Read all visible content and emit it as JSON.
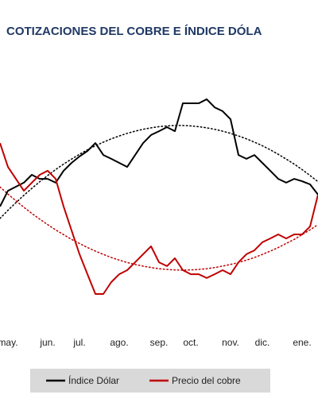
{
  "chart_data": {
    "type": "line",
    "title": "COTIZACIONES DEL COBRE E ÍNDICE DÓLA",
    "categories": [
      null,
      "may.",
      null,
      null,
      null,
      null,
      "jun.",
      null,
      null,
      null,
      "jul.",
      null,
      null,
      null,
      null,
      "ago.",
      null,
      null,
      null,
      null,
      "sep.",
      null,
      null,
      null,
      "oct.",
      null,
      null,
      null,
      null,
      "nov.",
      null,
      null,
      null,
      "dic.",
      null,
      null,
      null,
      null,
      "ene.",
      null,
      null
    ],
    "ylim": [
      0,
      100
    ],
    "series": [
      {
        "name": "Índice Dólar",
        "color": "#000000",
        "values": [
          46.7,
          53.3,
          55,
          56.7,
          60,
          58.3,
          58.3,
          56.7,
          61.7,
          65,
          67.7,
          70,
          73.3,
          68.3,
          66.7,
          65,
          63.3,
          68.3,
          73.3,
          76.7,
          78.3,
          80,
          78.3,
          90,
          90,
          90,
          91.7,
          88.3,
          86.7,
          83.3,
          68.3,
          66.7,
          68.3,
          65,
          61.7,
          58.3,
          56.7,
          58.3,
          57.3,
          56,
          51.7
        ]
      },
      {
        "name": "Precio del cobre",
        "color": "#c00000",
        "values": [
          73.3,
          63.3,
          58.3,
          53.3,
          56.7,
          60,
          61.7,
          58.3,
          46.7,
          36.7,
          26.7,
          18.3,
          10,
          10,
          15,
          18.3,
          20,
          23.3,
          26.7,
          30,
          23.3,
          21.7,
          25,
          20,
          18.3,
          18.3,
          16.7,
          18.3,
          20,
          18.3,
          23.3,
          26.7,
          28.3,
          31.7,
          33.3,
          35,
          33.3,
          35,
          35,
          38.3,
          51.7
        ]
      }
    ],
    "trend_lines": [
      {
        "color": "#000000",
        "values": [
          41.7,
          45.1,
          48.3,
          51.4,
          54.3,
          57.1,
          59.7,
          62.2,
          64.5,
          66.6,
          68.6,
          70.5,
          72.2,
          73.7,
          75.1,
          76.3,
          77.4,
          78.3,
          79.1,
          79.7,
          80.2,
          80.5,
          80.7,
          80.7,
          80.5,
          80.2,
          79.7,
          79.1,
          78.3,
          77.4,
          76.3,
          75.1,
          73.7,
          72.2,
          70.5,
          68.6,
          66.6,
          64.5,
          62.2,
          59.7,
          57.1
        ]
      },
      {
        "color": "#c00000",
        "values": [
          54.9,
          51.9,
          49.1,
          46.4,
          43.8,
          41.4,
          39.1,
          36.9,
          34.9,
          32.9,
          31.2,
          29.5,
          28,
          26.6,
          25.3,
          24.2,
          23.2,
          22.4,
          21.7,
          21.1,
          20.6,
          20.3,
          20.1,
          20,
          20.1,
          20.3,
          20.6,
          21.1,
          21.7,
          22.4,
          23.2,
          24.2,
          25.3,
          26.6,
          28,
          29.5,
          31.2,
          32.9,
          34.9,
          36.9,
          39.1
        ]
      }
    ]
  }
}
